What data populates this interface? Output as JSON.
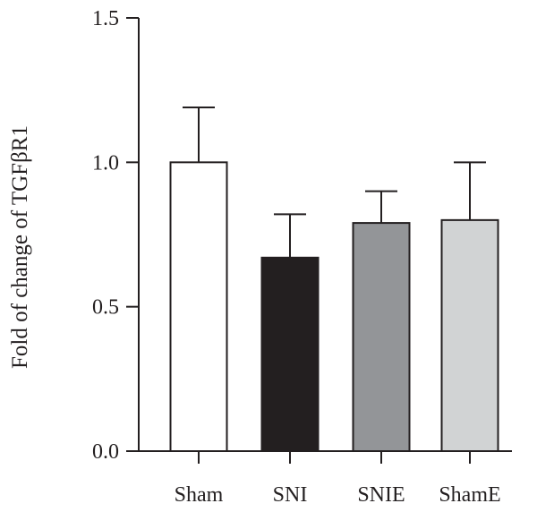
{
  "chart_data": {
    "type": "bar",
    "title": "",
    "xlabel": "",
    "ylabel": "Fold of change of TGFβR1",
    "ylim": [
      0,
      1.5
    ],
    "yticks": [
      "0.0",
      "0.5",
      "1.0",
      "1.5"
    ],
    "ytick_values": [
      0,
      0.5,
      1.0,
      1.5
    ],
    "categories": [
      "Sham",
      "SNI",
      "SNIE",
      "ShamE"
    ],
    "values": [
      1.0,
      0.67,
      0.79,
      0.8
    ],
    "error_upper": [
      0.19,
      0.15,
      0.11,
      0.2
    ],
    "bar_colors": [
      "#ffffff",
      "#231f20",
      "#939598",
      "#d1d3d4"
    ],
    "error_bars": "upper only",
    "grid": false,
    "legend": "none"
  }
}
